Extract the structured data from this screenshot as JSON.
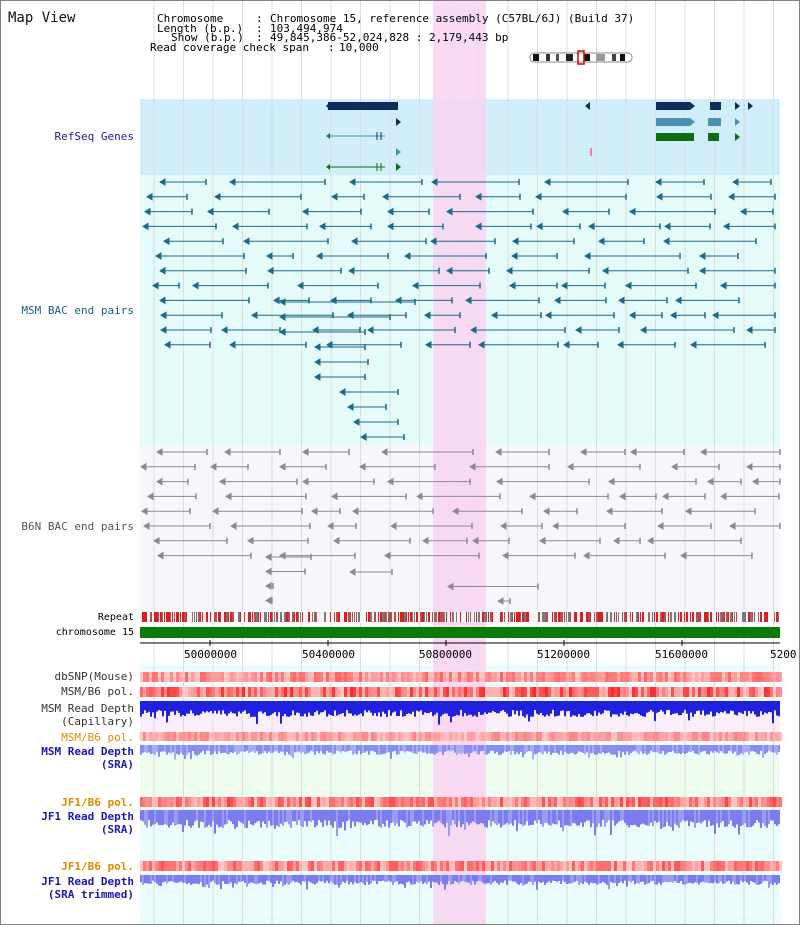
{
  "view": {
    "title": "Map View"
  },
  "header": {
    "rows": [
      {
        "label": "Chromosome",
        "value": "Chromosome 15, reference assembly (C57BL/6J) (Build 37)"
      },
      {
        "label": "Length (b.p.)",
        "value": "103,494,974"
      },
      {
        "label": "Show (b.p.)",
        "value": "49,845,386-52,024,828 : 2,179,443 bp"
      },
      {
        "label": "Read coverage check span",
        "value": "10,000"
      }
    ]
  },
  "ideogram": {
    "name": "chromosome-15-ideogram"
  },
  "tracks": {
    "refseq": "RefSeq Genes",
    "msm_bac": "MSM BAC end pairs",
    "b6n_bac": "B6N BAC end pairs",
    "repeat": "Repeat",
    "chromosome": "chromosome 15",
    "dbsnp": "dbSNP(Mouse)",
    "msm_b6_pol_1": "MSM/B6 pol.",
    "msm_depth_cap": "MSM Read Depth\n(Capillary)",
    "msm_b6_pol_2": "MSM/B6 pol.",
    "msm_depth_sra": "MSM Read Depth\n(SRA)",
    "jf1_b6_pol_1": "JF1/B6 pol.",
    "jf1_depth_sra": "JF1 Read Depth\n(SRA)",
    "jf1_b6_pol_2": "JF1/B6 pol.",
    "jf1_depth_trim": "JF1 Read Depth\n(SRA trimmed)"
  },
  "axis": {
    "ticks": [
      "50000000",
      "50400000",
      "50800000",
      "51200000",
      "51600000",
      "5200"
    ]
  },
  "colors": {
    "refseq_bg": "#cfeefa",
    "msm_bg": "#e4fbfa",
    "b6n_bg": "#f5f5fb",
    "depth_bg": "#eefcee",
    "highlight": "#f8d4f0",
    "msm_feature": "#1b6a8a",
    "b6n_feature": "#808080",
    "gene_navy": "#0d2d5c",
    "gene_teal": "#4a90b0",
    "gene_green": "#0e6e14",
    "chromosome_bar": "#0a7a0a",
    "depth_blue": "#2020e0",
    "depth_light": "#8a8cf0",
    "pol_red": "#e02020"
  }
}
